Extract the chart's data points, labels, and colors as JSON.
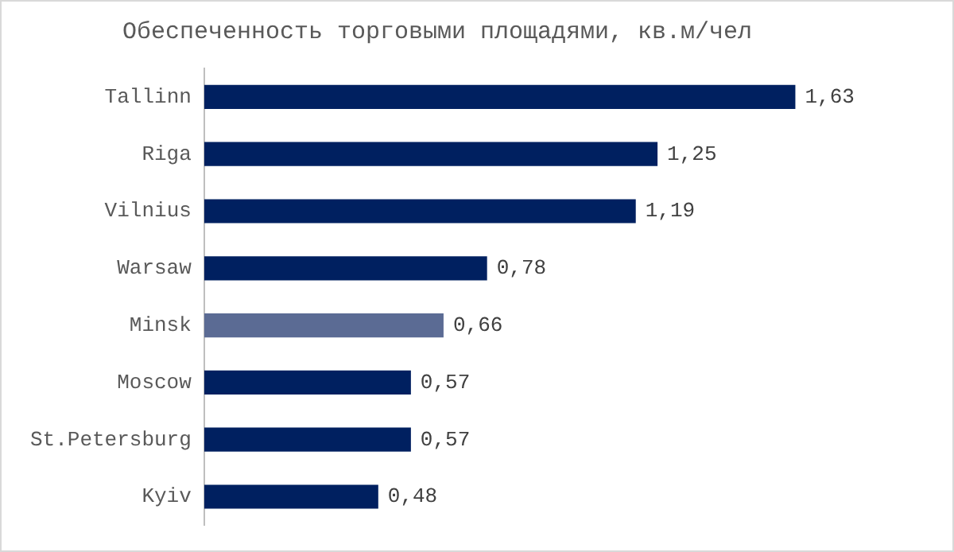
{
  "chart_data": {
    "type": "bar",
    "orientation": "horizontal",
    "title": "Обеспеченность торговыми площадями, кв.м/чел",
    "categories": [
      "Tallinn",
      "Riga",
      "Vilnius",
      "Warsaw",
      "Minsk",
      "Moscow",
      "St.Petersburg",
      "Kyiv"
    ],
    "values": [
      1.63,
      1.25,
      1.19,
      0.78,
      0.66,
      0.57,
      0.57,
      0.48
    ],
    "value_labels": [
      "1,63",
      "1,25",
      "1,19",
      "0,78",
      "0,66",
      "0,57",
      "0,57",
      "0,48"
    ],
    "colors": [
      "#002060",
      "#002060",
      "#002060",
      "#002060",
      "#5b6b94",
      "#002060",
      "#002060",
      "#002060"
    ]
  }
}
